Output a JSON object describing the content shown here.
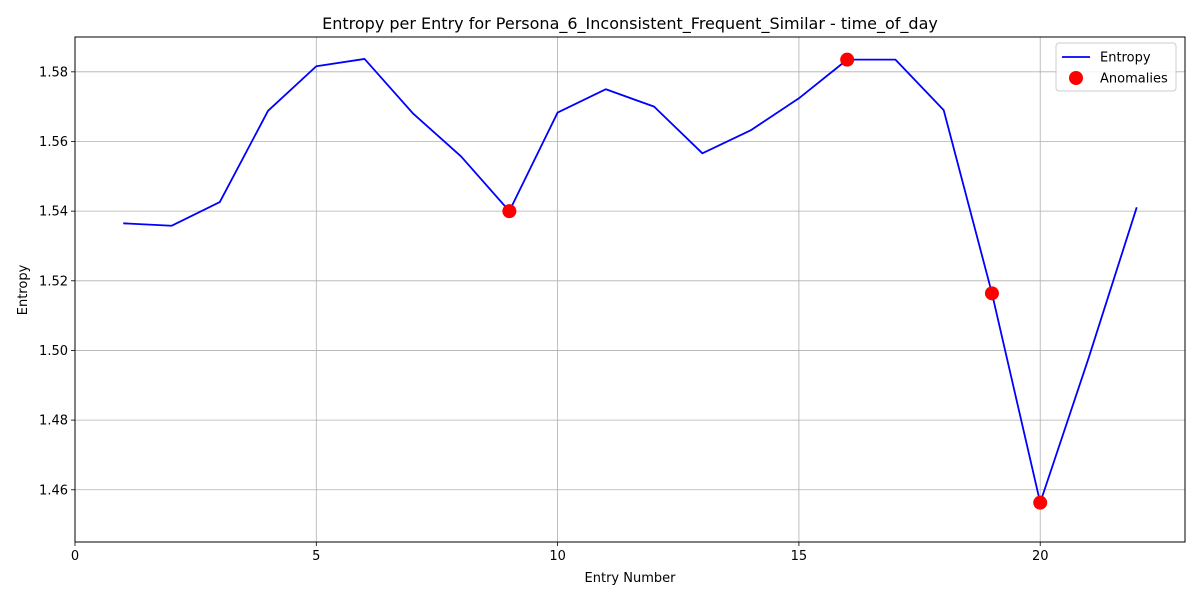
{
  "chart_data": {
    "type": "line",
    "title": "Entropy per Entry for Persona_6_Inconsistent_Frequent_Similar - time_of_day",
    "xlabel": "Entry Number",
    "ylabel": "Entropy",
    "xlim": [
      0,
      23
    ],
    "ylim": [
      1.445,
      1.59
    ],
    "xticks": [
      0,
      5,
      10,
      15,
      20
    ],
    "yticks": [
      1.46,
      1.48,
      1.5,
      1.52,
      1.54,
      1.56,
      1.58
    ],
    "grid": true,
    "legend_position": "top-right",
    "series": [
      {
        "name": "Entropy",
        "kind": "line",
        "color": "#0000ff",
        "x": [
          1,
          2,
          3,
          4,
          5,
          6,
          7,
          8,
          9,
          10,
          11,
          12,
          13,
          14,
          15,
          16,
          17,
          18,
          19,
          20,
          21,
          22
        ],
        "y": [
          1.5365,
          1.5358,
          1.5426,
          1.5688,
          1.5816,
          1.5837,
          1.5681,
          1.5557,
          1.54,
          1.5683,
          1.575,
          1.57,
          1.5566,
          1.5632,
          1.5724,
          1.5835,
          1.5835,
          1.569,
          1.5164,
          1.4563,
          1.4977,
          1.5411
        ]
      },
      {
        "name": "Anomalies",
        "kind": "scatter",
        "color": "#ff0000",
        "x": [
          9,
          16,
          19,
          20
        ],
        "y": [
          1.54,
          1.5835,
          1.5164,
          1.4563
        ]
      }
    ]
  }
}
